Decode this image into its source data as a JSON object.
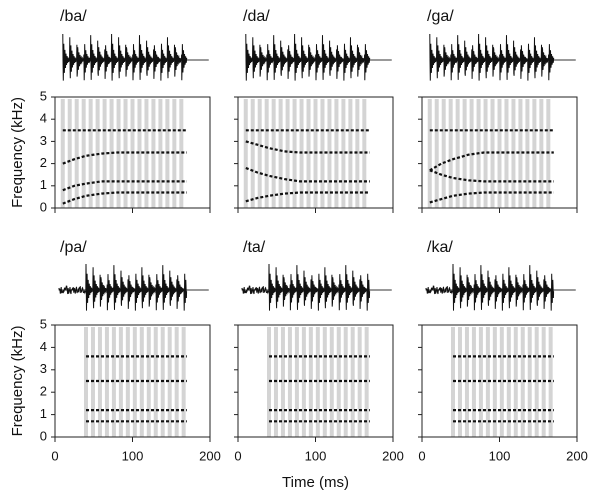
{
  "chart_data": [
    {
      "type": "spectrogram",
      "title": "/ba/",
      "ylabel": "Frequency (kHz)",
      "xlim": [
        0,
        200
      ],
      "ylim": [
        0,
        5
      ],
      "xticks": [
        0,
        100,
        200
      ],
      "yticks": [
        0,
        1,
        2,
        3,
        4,
        5
      ],
      "x": [
        10,
        25,
        40,
        60,
        80,
        100,
        130,
        170
      ],
      "series": [
        {
          "color": "#111111",
          "values": [
            0.2,
            0.4,
            0.55,
            0.65,
            0.7,
            0.7,
            0.7,
            0.7
          ]
        },
        {
          "color": "#111111",
          "values": [
            0.8,
            1.0,
            1.1,
            1.2,
            1.2,
            1.2,
            1.2,
            1.2
          ]
        },
        {
          "color": "#111111",
          "values": [
            2.0,
            2.2,
            2.35,
            2.45,
            2.5,
            2.5,
            2.5,
            2.5
          ]
        },
        {
          "color": "#111111",
          "values": [
            3.5,
            3.5,
            3.5,
            3.5,
            3.5,
            3.5,
            3.5,
            3.5
          ]
        }
      ]
    },
    {
      "type": "spectrogram",
      "title": "/da/",
      "xlim": [
        0,
        200
      ],
      "ylim": [
        0,
        5
      ],
      "xticks": [
        0,
        100,
        200
      ],
      "yticks": [
        0,
        1,
        2,
        3,
        4,
        5
      ],
      "x": [
        10,
        25,
        40,
        60,
        80,
        100,
        130,
        170
      ],
      "series": [
        {
          "color": "#111111",
          "values": [
            0.3,
            0.45,
            0.55,
            0.65,
            0.7,
            0.7,
            0.7,
            0.7
          ]
        },
        {
          "color": "#111111",
          "values": [
            1.8,
            1.6,
            1.45,
            1.3,
            1.2,
            1.2,
            1.2,
            1.2
          ]
        },
        {
          "color": "#111111",
          "values": [
            3.0,
            2.85,
            2.7,
            2.55,
            2.5,
            2.5,
            2.5,
            2.5
          ]
        },
        {
          "color": "#111111",
          "values": [
            3.5,
            3.5,
            3.5,
            3.5,
            3.5,
            3.5,
            3.5,
            3.5
          ]
        }
      ]
    },
    {
      "type": "spectrogram",
      "title": "/ga/",
      "xlim": [
        0,
        200
      ],
      "ylim": [
        0,
        5
      ],
      "xticks": [
        0,
        100,
        200
      ],
      "yticks": [
        0,
        1,
        2,
        3,
        4,
        5
      ],
      "x": [
        10,
        25,
        40,
        60,
        80,
        100,
        130,
        170
      ],
      "series": [
        {
          "color": "#111111",
          "values": [
            0.25,
            0.4,
            0.55,
            0.65,
            0.7,
            0.7,
            0.7,
            0.7
          ]
        },
        {
          "color": "#111111",
          "values": [
            1.7,
            1.5,
            1.35,
            1.25,
            1.2,
            1.2,
            1.2,
            1.2
          ]
        },
        {
          "color": "#111111",
          "values": [
            1.7,
            2.0,
            2.2,
            2.4,
            2.5,
            2.5,
            2.5,
            2.5
          ]
        },
        {
          "color": "#111111",
          "values": [
            3.5,
            3.5,
            3.5,
            3.5,
            3.5,
            3.5,
            3.5,
            3.5
          ]
        }
      ]
    },
    {
      "type": "spectrogram",
      "title": "/pa/",
      "ylabel": "Frequency (kHz)",
      "xlim": [
        0,
        200
      ],
      "ylim": [
        0,
        5
      ],
      "xticks": [
        0,
        100,
        200
      ],
      "yticks": [
        0,
        1,
        2,
        3,
        4,
        5
      ],
      "x": [
        40,
        60,
        80,
        100,
        130,
        170
      ],
      "series": [
        {
          "color": "#111111",
          "values": [
            0.7,
            0.7,
            0.7,
            0.7,
            0.7,
            0.7
          ]
        },
        {
          "color": "#111111",
          "values": [
            1.2,
            1.2,
            1.2,
            1.2,
            1.2,
            1.2
          ]
        },
        {
          "color": "#111111",
          "values": [
            2.5,
            2.5,
            2.5,
            2.5,
            2.5,
            2.5
          ]
        },
        {
          "color": "#111111",
          "values": [
            3.6,
            3.6,
            3.6,
            3.6,
            3.6,
            3.6
          ]
        }
      ]
    },
    {
      "type": "spectrogram",
      "title": "/ta/",
      "xlabel": "Time (ms)",
      "xlim": [
        0,
        200
      ],
      "ylim": [
        0,
        5
      ],
      "xticks": [
        0,
        100,
        200
      ],
      "yticks": [
        0,
        1,
        2,
        3,
        4,
        5
      ],
      "x": [
        40,
        60,
        80,
        100,
        130,
        170
      ],
      "series": [
        {
          "color": "#111111",
          "values": [
            0.7,
            0.7,
            0.7,
            0.7,
            0.7,
            0.7
          ]
        },
        {
          "color": "#111111",
          "values": [
            1.2,
            1.2,
            1.2,
            1.2,
            1.2,
            1.2
          ]
        },
        {
          "color": "#111111",
          "values": [
            2.5,
            2.5,
            2.5,
            2.5,
            2.5,
            2.5
          ]
        },
        {
          "color": "#111111",
          "values": [
            3.6,
            3.6,
            3.6,
            3.6,
            3.6,
            3.6
          ]
        }
      ]
    },
    {
      "type": "spectrogram",
      "title": "/ka/",
      "xlim": [
        0,
        200
      ],
      "ylim": [
        0,
        5
      ],
      "xticks": [
        0,
        100,
        200
      ],
      "yticks": [
        0,
        1,
        2,
        3,
        4,
        5
      ],
      "x": [
        40,
        60,
        80,
        100,
        130,
        170
      ],
      "series": [
        {
          "color": "#111111",
          "values": [
            0.7,
            0.7,
            0.7,
            0.7,
            0.7,
            0.7
          ]
        },
        {
          "color": "#111111",
          "values": [
            1.2,
            1.2,
            1.2,
            1.2,
            1.2,
            1.2
          ]
        },
        {
          "color": "#111111",
          "values": [
            2.5,
            2.5,
            2.5,
            2.5,
            2.5,
            2.5
          ]
        },
        {
          "color": "#111111",
          "values": [
            3.6,
            3.6,
            3.6,
            3.6,
            3.6,
            3.6
          ]
        }
      ]
    }
  ]
}
